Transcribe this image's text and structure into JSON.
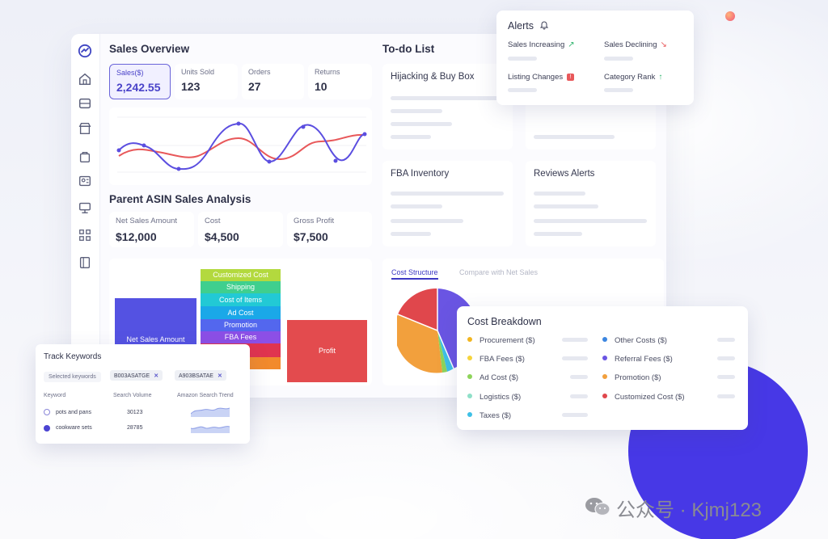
{
  "sales_overview": {
    "title": "Sales Overview",
    "stats": [
      {
        "label": "Sales($)",
        "value": "2,242.55"
      },
      {
        "label": "Units Sold",
        "value": "123"
      },
      {
        "label": "Orders",
        "value": "27"
      },
      {
        "label": "Returns",
        "value": "10"
      }
    ],
    "chart_colors": {
      "series_a": "#5b4ee0",
      "series_b": "#e8585a"
    }
  },
  "parent_asin": {
    "title": "Parent ASIN Sales Analysis",
    "stats": [
      {
        "label": "Net Sales Amount",
        "value": "$12,000"
      },
      {
        "label": "Cost",
        "value": "$4,500"
      },
      {
        "label": "Gross Profit",
        "value": "$7,500"
      }
    ],
    "waterfall": {
      "net_sales_label": "Net Sales Amount",
      "profit_label": "Profit",
      "cost_segments": [
        "Customized Cost",
        "Shipping",
        "Cost of Items",
        "Ad Cost",
        "Promotion",
        "FBA Fees",
        "Fees",
        ""
      ]
    }
  },
  "todo": {
    "title": "To-do List",
    "cards": [
      "Hijacking & Buy Box",
      "FBA Inventory",
      "Reviews Alerts"
    ]
  },
  "alerts": {
    "title": "Alerts",
    "items": [
      {
        "label": "Sales Increasing",
        "arrow": "↗",
        "color": "#2fb36b"
      },
      {
        "label": "Sales Declining",
        "arrow": "↘",
        "color": "#e8585a"
      },
      {
        "label": "Listing Changes",
        "badge": "!",
        "color": "#e8585a"
      },
      {
        "label": "Category Rank",
        "arrow": "↑",
        "color": "#2fb36b"
      }
    ]
  },
  "cost_structure": {
    "tabs": [
      "Cost Structure",
      "Compare with Net Sales"
    ],
    "active_tab": "Cost Structure"
  },
  "cost_breakdown": {
    "title": "Cost Breakdown",
    "left": [
      {
        "label": "Procurement ($)",
        "color": "#f2b51f"
      },
      {
        "label": "FBA Fees ($)",
        "color": "#f6d43c"
      },
      {
        "label": "Ad Cost ($)",
        "color": "#8ed45a"
      },
      {
        "label": "Logistics ($)",
        "color": "#8fe0c8"
      },
      {
        "label": "Taxes ($)",
        "color": "#3ec0e6"
      }
    ],
    "right": [
      {
        "label": "Other Costs ($)",
        "color": "#3c86e0"
      },
      {
        "label": "Referral Fees ($)",
        "color": "#6a55e3"
      },
      {
        "label": "Promotion ($)",
        "color": "#f2a03d"
      },
      {
        "label": "Customized Cost ($)",
        "color": "#e0474c"
      }
    ]
  },
  "track_keywords": {
    "title": "Track Keywords",
    "selected_label": "Selected keywords",
    "chips": [
      "B003ASATGE",
      "A903BSATAE"
    ],
    "columns": [
      "Keyword",
      "Search Volume",
      "Amazon Search Trend"
    ],
    "rows": [
      {
        "keyword": "pots and pans",
        "volume": "30123"
      },
      {
        "keyword": "cookware sets",
        "volume": "28785"
      }
    ]
  },
  "watermark": {
    "text": "公众号 · Kjmj123"
  }
}
